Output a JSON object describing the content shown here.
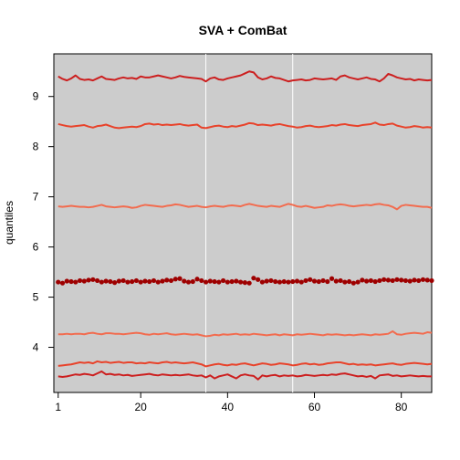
{
  "chart_data": {
    "type": "line",
    "title": "SVA + ComBat",
    "xlabel": "",
    "ylabel": "quantiles",
    "xlim": [
      0,
      87
    ],
    "ylim": [
      3.1,
      9.85
    ],
    "x_ticks": [
      1,
      20,
      40,
      60,
      80
    ],
    "y_ticks": [
      4,
      5,
      6,
      7,
      8,
      9
    ],
    "vertical_reference_lines": [
      35,
      55
    ],
    "background": "#cccccc",
    "n_samples": 87,
    "series": [
      {
        "color": "#cc1f1f",
        "style": "line",
        "values": [
          9.4,
          9.35,
          9.32,
          9.36,
          9.42,
          9.35,
          9.33,
          9.34,
          9.32,
          9.36,
          9.4,
          9.35,
          9.34,
          9.33,
          9.36,
          9.38,
          9.36,
          9.37,
          9.35,
          9.4,
          9.38,
          9.38,
          9.4,
          9.42,
          9.4,
          9.38,
          9.36,
          9.38,
          9.41,
          9.39,
          9.38,
          9.37,
          9.36,
          9.35,
          9.3,
          9.36,
          9.38,
          9.34,
          9.33,
          9.36,
          9.38,
          9.4,
          9.42,
          9.46,
          9.5,
          9.48,
          9.38,
          9.34,
          9.36,
          9.4,
          9.37,
          9.36,
          9.33,
          9.3,
          9.32,
          9.33,
          9.34,
          9.32,
          9.33,
          9.36,
          9.35,
          9.34,
          9.35,
          9.36,
          9.33,
          9.4,
          9.42,
          9.38,
          9.36,
          9.34,
          9.36,
          9.38,
          9.35,
          9.34,
          9.3,
          9.36,
          9.45,
          9.42,
          9.38,
          9.36,
          9.34,
          9.35,
          9.32,
          9.34,
          9.33,
          9.32,
          9.33
        ]
      },
      {
        "color": "#e8432b",
        "style": "line",
        "values": [
          8.45,
          8.43,
          8.41,
          8.4,
          8.41,
          8.42,
          8.43,
          8.4,
          8.38,
          8.41,
          8.42,
          8.44,
          8.41,
          8.38,
          8.37,
          8.38,
          8.39,
          8.4,
          8.39,
          8.41,
          8.45,
          8.46,
          8.44,
          8.45,
          8.43,
          8.44,
          8.43,
          8.44,
          8.45,
          8.43,
          8.42,
          8.43,
          8.44,
          8.38,
          8.37,
          8.39,
          8.41,
          8.42,
          8.4,
          8.39,
          8.41,
          8.4,
          8.42,
          8.44,
          8.47,
          8.46,
          8.43,
          8.44,
          8.43,
          8.42,
          8.44,
          8.45,
          8.43,
          8.41,
          8.4,
          8.38,
          8.39,
          8.41,
          8.42,
          8.4,
          8.39,
          8.4,
          8.41,
          8.43,
          8.42,
          8.44,
          8.45,
          8.43,
          8.42,
          8.41,
          8.43,
          8.44,
          8.45,
          8.48,
          8.44,
          8.43,
          8.45,
          8.46,
          8.42,
          8.4,
          8.38,
          8.39,
          8.41,
          8.4,
          8.38,
          8.39,
          8.38
        ]
      },
      {
        "color": "#f26c4f",
        "style": "line",
        "values": [
          6.81,
          6.8,
          6.81,
          6.82,
          6.81,
          6.8,
          6.8,
          6.79,
          6.8,
          6.82,
          6.84,
          6.81,
          6.8,
          6.79,
          6.8,
          6.81,
          6.8,
          6.78,
          6.79,
          6.82,
          6.84,
          6.83,
          6.82,
          6.81,
          6.8,
          6.82,
          6.83,
          6.85,
          6.84,
          6.82,
          6.8,
          6.81,
          6.82,
          6.8,
          6.79,
          6.81,
          6.82,
          6.81,
          6.8,
          6.82,
          6.83,
          6.82,
          6.81,
          6.84,
          6.86,
          6.84,
          6.82,
          6.81,
          6.8,
          6.82,
          6.81,
          6.8,
          6.83,
          6.86,
          6.84,
          6.81,
          6.8,
          6.82,
          6.8,
          6.78,
          6.79,
          6.8,
          6.83,
          6.82,
          6.84,
          6.85,
          6.84,
          6.82,
          6.81,
          6.82,
          6.83,
          6.84,
          6.83,
          6.85,
          6.86,
          6.84,
          6.83,
          6.8,
          6.75,
          6.82,
          6.84,
          6.83,
          6.82,
          6.81,
          6.8,
          6.8,
          6.78
        ]
      },
      {
        "color": "#9e0000",
        "style": "points",
        "values": [
          5.3,
          5.28,
          5.32,
          5.31,
          5.3,
          5.33,
          5.32,
          5.34,
          5.35,
          5.33,
          5.3,
          5.32,
          5.31,
          5.29,
          5.32,
          5.33,
          5.3,
          5.31,
          5.33,
          5.3,
          5.32,
          5.31,
          5.33,
          5.3,
          5.32,
          5.34,
          5.33,
          5.36,
          5.37,
          5.32,
          5.3,
          5.31,
          5.36,
          5.33,
          5.3,
          5.32,
          5.31,
          5.3,
          5.33,
          5.3,
          5.31,
          5.32,
          5.3,
          5.29,
          5.28,
          5.38,
          5.35,
          5.3,
          5.32,
          5.33,
          5.31,
          5.3,
          5.31,
          5.3,
          5.31,
          5.32,
          5.3,
          5.33,
          5.35,
          5.32,
          5.31,
          5.33,
          5.31,
          5.37,
          5.32,
          5.33,
          5.3,
          5.31,
          5.28,
          5.3,
          5.34,
          5.32,
          5.33,
          5.31,
          5.33,
          5.35,
          5.34,
          5.33,
          5.35,
          5.34,
          5.33,
          5.32,
          5.34,
          5.33,
          5.35,
          5.34,
          5.33
        ]
      },
      {
        "color": "#f26c4f",
        "style": "line",
        "values": [
          4.26,
          4.26,
          4.27,
          4.26,
          4.27,
          4.27,
          4.26,
          4.28,
          4.29,
          4.27,
          4.26,
          4.28,
          4.28,
          4.27,
          4.27,
          4.26,
          4.27,
          4.28,
          4.29,
          4.28,
          4.26,
          4.25,
          4.27,
          4.26,
          4.27,
          4.28,
          4.26,
          4.25,
          4.26,
          4.27,
          4.26,
          4.25,
          4.26,
          4.24,
          4.22,
          4.23,
          4.25,
          4.24,
          4.26,
          4.25,
          4.26,
          4.27,
          4.25,
          4.26,
          4.25,
          4.27,
          4.26,
          4.25,
          4.24,
          4.25,
          4.26,
          4.24,
          4.26,
          4.25,
          4.24,
          4.26,
          4.25,
          4.26,
          4.27,
          4.26,
          4.25,
          4.24,
          4.26,
          4.25,
          4.26,
          4.25,
          4.24,
          4.25,
          4.24,
          4.25,
          4.26,
          4.25,
          4.24,
          4.26,
          4.25,
          4.26,
          4.27,
          4.32,
          4.26,
          4.25,
          4.27,
          4.28,
          4.29,
          4.28,
          4.27,
          4.3,
          4.29
        ]
      },
      {
        "color": "#e8432b",
        "style": "line",
        "values": [
          3.63,
          3.64,
          3.65,
          3.66,
          3.68,
          3.7,
          3.69,
          3.7,
          3.68,
          3.72,
          3.7,
          3.71,
          3.69,
          3.7,
          3.71,
          3.69,
          3.7,
          3.7,
          3.68,
          3.69,
          3.68,
          3.7,
          3.69,
          3.68,
          3.7,
          3.71,
          3.69,
          3.7,
          3.69,
          3.68,
          3.69,
          3.7,
          3.68,
          3.66,
          3.62,
          3.64,
          3.66,
          3.67,
          3.65,
          3.64,
          3.66,
          3.65,
          3.67,
          3.68,
          3.66,
          3.64,
          3.66,
          3.68,
          3.67,
          3.65,
          3.66,
          3.68,
          3.67,
          3.66,
          3.64,
          3.65,
          3.67,
          3.68,
          3.66,
          3.67,
          3.65,
          3.66,
          3.68,
          3.69,
          3.7,
          3.7,
          3.68,
          3.66,
          3.67,
          3.65,
          3.66,
          3.65,
          3.66,
          3.64,
          3.65,
          3.66,
          3.67,
          3.68,
          3.66,
          3.65,
          3.67,
          3.68,
          3.69,
          3.68,
          3.67,
          3.66,
          3.67
        ]
      },
      {
        "color": "#cc1f1f",
        "style": "line",
        "values": [
          3.42,
          3.41,
          3.42,
          3.44,
          3.46,
          3.45,
          3.47,
          3.46,
          3.44,
          3.48,
          3.52,
          3.46,
          3.47,
          3.45,
          3.46,
          3.44,
          3.45,
          3.43,
          3.44,
          3.45,
          3.46,
          3.47,
          3.45,
          3.44,
          3.46,
          3.45,
          3.44,
          3.45,
          3.44,
          3.45,
          3.46,
          3.44,
          3.43,
          3.44,
          3.4,
          3.44,
          3.38,
          3.42,
          3.44,
          3.46,
          3.42,
          3.38,
          3.44,
          3.46,
          3.44,
          3.43,
          3.36,
          3.44,
          3.42,
          3.44,
          3.45,
          3.42,
          3.44,
          3.43,
          3.44,
          3.42,
          3.43,
          3.45,
          3.44,
          3.43,
          3.44,
          3.45,
          3.44,
          3.46,
          3.45,
          3.47,
          3.48,
          3.46,
          3.44,
          3.42,
          3.43,
          3.41,
          3.43,
          3.38,
          3.44,
          3.45,
          3.46,
          3.43,
          3.44,
          3.42,
          3.43,
          3.44,
          3.43,
          3.42,
          3.43,
          3.42,
          3.42
        ]
      }
    ]
  }
}
